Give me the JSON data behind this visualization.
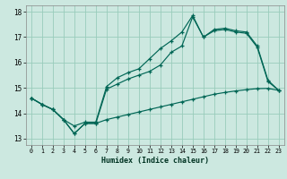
{
  "xlabel": "Humidex (Indice chaleur)",
  "bg_color": "#cce8e0",
  "grid_color": "#99ccbb",
  "line_color": "#006655",
  "xlim": [
    -0.5,
    23.5
  ],
  "ylim": [
    12.75,
    18.25
  ],
  "xticks": [
    0,
    1,
    2,
    3,
    4,
    5,
    6,
    7,
    8,
    9,
    10,
    11,
    12,
    13,
    14,
    15,
    16,
    17,
    18,
    19,
    20,
    21,
    22,
    23
  ],
  "yticks": [
    13,
    14,
    15,
    16,
    17,
    18
  ],
  "line1_x": [
    0,
    1,
    2,
    3,
    4,
    5,
    6,
    7,
    8,
    9,
    10,
    11,
    12,
    13,
    14,
    15,
    16,
    17,
    18,
    19,
    20,
    21,
    22,
    23
  ],
  "line1_y": [
    14.6,
    14.35,
    14.15,
    13.75,
    13.2,
    13.6,
    13.6,
    14.95,
    15.15,
    15.35,
    15.5,
    15.65,
    15.9,
    16.4,
    16.65,
    17.8,
    17.0,
    17.25,
    17.3,
    17.2,
    17.15,
    16.6,
    15.25,
    14.9
  ],
  "line2_x": [
    0,
    1,
    2,
    3,
    4,
    5,
    6,
    7,
    8,
    9,
    10,
    11,
    12,
    13,
    14,
    15,
    16,
    17,
    18,
    19,
    20,
    21,
    22,
    23
  ],
  "line2_y": [
    14.6,
    14.35,
    14.15,
    13.75,
    13.5,
    13.65,
    13.65,
    15.05,
    15.4,
    15.6,
    15.75,
    16.15,
    16.55,
    16.85,
    17.2,
    17.85,
    17.0,
    17.3,
    17.35,
    17.25,
    17.2,
    16.65,
    15.3,
    14.9
  ],
  "line3_x": [
    0,
    1,
    2,
    3,
    4,
    5,
    6,
    7,
    8,
    9,
    10,
    11,
    12,
    13,
    14,
    15,
    16,
    17,
    18,
    19,
    20,
    21,
    22,
    23
  ],
  "line3_y": [
    14.6,
    14.35,
    14.15,
    13.75,
    13.2,
    13.6,
    13.6,
    13.75,
    13.85,
    13.95,
    14.05,
    14.15,
    14.25,
    14.35,
    14.45,
    14.55,
    14.65,
    14.75,
    14.82,
    14.88,
    14.93,
    14.97,
    14.98,
    14.9
  ]
}
